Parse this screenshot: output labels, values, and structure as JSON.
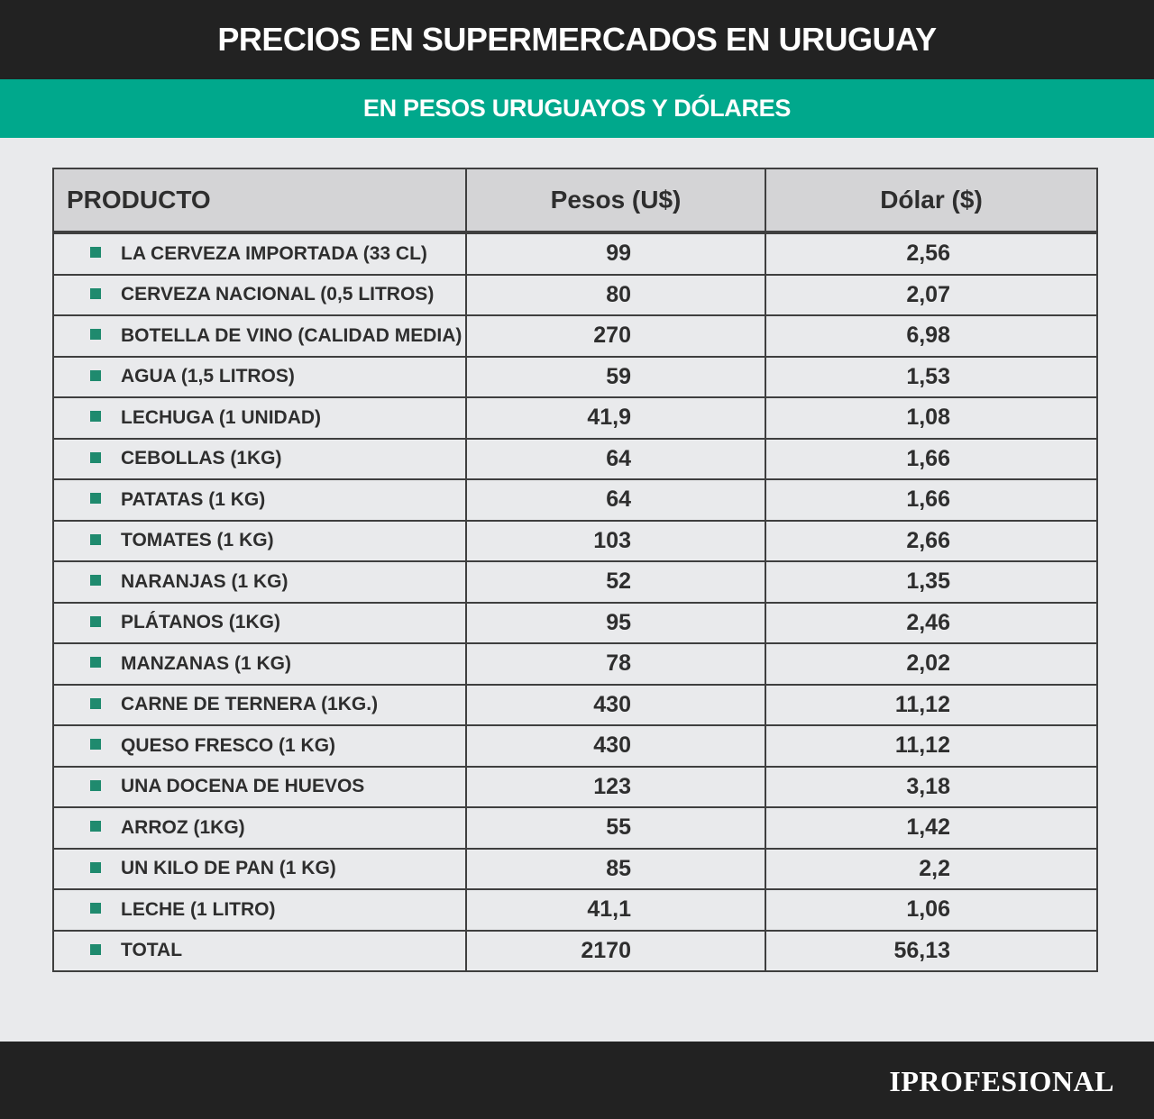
{
  "header": {
    "title": "PRECIOS EN SUPERMERCADOS EN URUGUAY",
    "subtitle": "EN PESOS URUGUAYOS Y DÓLARES"
  },
  "colors": {
    "header_bg": "#222222",
    "subtitle_bg": "#00a88c",
    "bullet": "#1f8a6e",
    "table_header_bg": "#d4d4d6",
    "page_bg": "#e9eaec"
  },
  "table": {
    "columns": [
      "PRODUCTO",
      "Pesos (U$)",
      "Dólar ($)"
    ],
    "rows": [
      {
        "producto": "LA CERVEZA IMPORTADA (33 CL)",
        "pesos": "99",
        "dolar": "2,56"
      },
      {
        "producto": "CERVEZA NACIONAL (0,5 LITROS)",
        "pesos": "80",
        "dolar": "2,07"
      },
      {
        "producto": "BOTELLA DE VINO (CALIDAD MEDIA)",
        "pesos": "270",
        "dolar": "6,98"
      },
      {
        "producto": "AGUA (1,5 LITROS)",
        "pesos": "59",
        "dolar": "1,53"
      },
      {
        "producto": "LECHUGA (1 UNIDAD)",
        "pesos": "41,9",
        "dolar": "1,08"
      },
      {
        "producto": "CEBOLLAS (1KG)",
        "pesos": "64",
        "dolar": "1,66"
      },
      {
        "producto": "PATATAS (1 KG)",
        "pesos": "64",
        "dolar": "1,66"
      },
      {
        "producto": "TOMATES (1 KG)",
        "pesos": "103",
        "dolar": "2,66"
      },
      {
        "producto": "NARANJAS (1 KG)",
        "pesos": "52",
        "dolar": "1,35"
      },
      {
        "producto": "PLÁTANOS (1KG)",
        "pesos": "95",
        "dolar": "2,46"
      },
      {
        "producto": "MANZANAS (1 KG)",
        "pesos": "78",
        "dolar": "2,02"
      },
      {
        "producto": "CARNE DE TERNERA (1KG.)",
        "pesos": "430",
        "dolar": "11,12"
      },
      {
        "producto": "QUESO FRESCO (1 KG)",
        "pesos": "430",
        "dolar": "11,12"
      },
      {
        "producto": "UNA DOCENA DE HUEVOS",
        "pesos": "123",
        "dolar": "3,18"
      },
      {
        "producto": "ARROZ (1KG)",
        "pesos": "55",
        "dolar": "1,42"
      },
      {
        "producto": "UN KILO DE PAN (1 KG)",
        "pesos": "85",
        "dolar": "2,2"
      },
      {
        "producto": "LECHE (1 LITRO)",
        "pesos": "41,1",
        "dolar": "1,06"
      },
      {
        "producto": "TOTAL",
        "pesos": "2170",
        "dolar": "56,13"
      }
    ]
  },
  "footer": {
    "logo": "IPROFESIONAL"
  }
}
